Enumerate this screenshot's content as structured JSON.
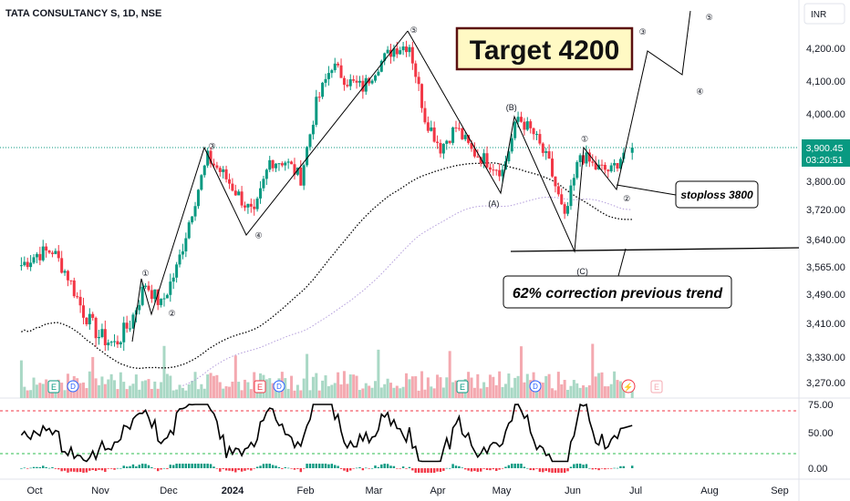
{
  "header": {
    "title": "TATA CONSULTANCY S, 1D, NSE",
    "currency": "INR"
  },
  "price_tag": {
    "price": "3,900.45",
    "countdown": "03:20:51"
  },
  "annotations": {
    "target": "Target 4200",
    "stoploss": "stoploss 3800",
    "correction": "62% correction previous trend"
  },
  "chart_data": {
    "type": "candlestick",
    "title": "TATA CONSULTANCY S, 1D, NSE",
    "x_ticks": [
      "Oct",
      "Nov",
      "Dec",
      "2024",
      "Feb",
      "Mar",
      "Apr",
      "May",
      "Jun",
      "Jul",
      "Aug",
      "Sep"
    ],
    "y_ticks": [
      "4,200.00",
      "4,100.00",
      "4,000.00",
      "3,900.00",
      "3,800.00",
      "3,720.00",
      "3,640.00",
      "3,565.00",
      "3,490.00",
      "3,410.00",
      "3,330.00",
      "3,270.00"
    ],
    "rsi_ticks": [
      "75.00",
      "50.00"
    ],
    "macd_ticks": [
      "0.00"
    ],
    "last_price": 3900.45,
    "target": 4200,
    "stoploss": 3800,
    "price_path": [
      [
        "2023-09-25",
        3570
      ],
      [
        "2023-10-02",
        3600
      ],
      [
        "2023-10-09",
        3610
      ],
      [
        "2023-10-16",
        3540
      ],
      [
        "2023-10-23",
        3440
      ],
      [
        "2023-10-30",
        3380
      ],
      [
        "2023-11-06",
        3360
      ],
      [
        "2023-11-13",
        3410
      ],
      [
        "2023-11-20",
        3520
      ],
      [
        "2023-11-27",
        3460
      ],
      [
        "2023-12-04",
        3560
      ],
      [
        "2023-12-11",
        3720
      ],
      [
        "2023-12-18",
        3870
      ],
      [
        "2023-12-25",
        3820
      ],
      [
        "2024-01-01",
        3760
      ],
      [
        "2024-01-08",
        3700
      ],
      [
        "2024-01-15",
        3860
      ],
      [
        "2024-01-22",
        3860
      ],
      [
        "2024-01-29",
        3810
      ],
      [
        "2024-02-05",
        4030
      ],
      [
        "2024-02-12",
        4150
      ],
      [
        "2024-02-19",
        4100
      ],
      [
        "2024-02-26",
        4080
      ],
      [
        "2024-03-04",
        4150
      ],
      [
        "2024-03-11",
        4200
      ],
      [
        "2024-03-18",
        4210
      ],
      [
        "2024-03-25",
        3990
      ],
      [
        "2024-04-01",
        3900
      ],
      [
        "2024-04-08",
        3960
      ],
      [
        "2024-04-15",
        3890
      ],
      [
        "2024-04-22",
        3860
      ],
      [
        "2024-04-29",
        3830
      ],
      [
        "2024-05-06",
        3990
      ],
      [
        "2024-05-13",
        3940
      ],
      [
        "2024-05-20",
        3850
      ],
      [
        "2024-05-27",
        3690
      ],
      [
        "2024-06-03",
        3880
      ],
      [
        "2024-06-10",
        3840
      ],
      [
        "2024-06-17",
        3830
      ],
      [
        "2024-06-24",
        3900
      ]
    ],
    "waves": [
      {
        "label": "1",
        "date": "2023-11-20",
        "price": 3530
      },
      {
        "label": "2",
        "date": "2023-11-27",
        "price": 3440
      },
      {
        "label": "3",
        "date": "2023-12-20",
        "price": 3880
      },
      {
        "label": "4",
        "date": "2024-01-10",
        "price": 3680
      },
      {
        "label": "5",
        "date": "2024-03-20",
        "price": 4220
      },
      {
        "label": "B",
        "date": "2024-05-03",
        "price": 4000
      },
      {
        "label": "A",
        "date": "2024-04-25",
        "price": 3770
      },
      {
        "label": "C",
        "date": "2024-06-04",
        "price": 3600
      },
      {
        "label": "1",
        "date": "2024-06-05",
        "price": 3890
      },
      {
        "label": "2",
        "date": "2024-06-24",
        "price": 3790
      },
      {
        "label": "3",
        "date": "2024-07-02",
        "price": 4220
      },
      {
        "label": "4",
        "date": "2024-07-27",
        "price": 4110
      },
      {
        "label": "5",
        "date": "2024-08-01",
        "price": 4280
      }
    ],
    "rsi_levels": [
      70,
      30
    ],
    "colors": {
      "up": "#089981",
      "down": "#f23645",
      "vol_up": "#a9d8c5",
      "vol_down": "#f4a9b0",
      "price_tag": "#089981",
      "rsi_line": "#000000",
      "target_bg": "#fff9c4",
      "target_border": "#5b1010"
    }
  }
}
